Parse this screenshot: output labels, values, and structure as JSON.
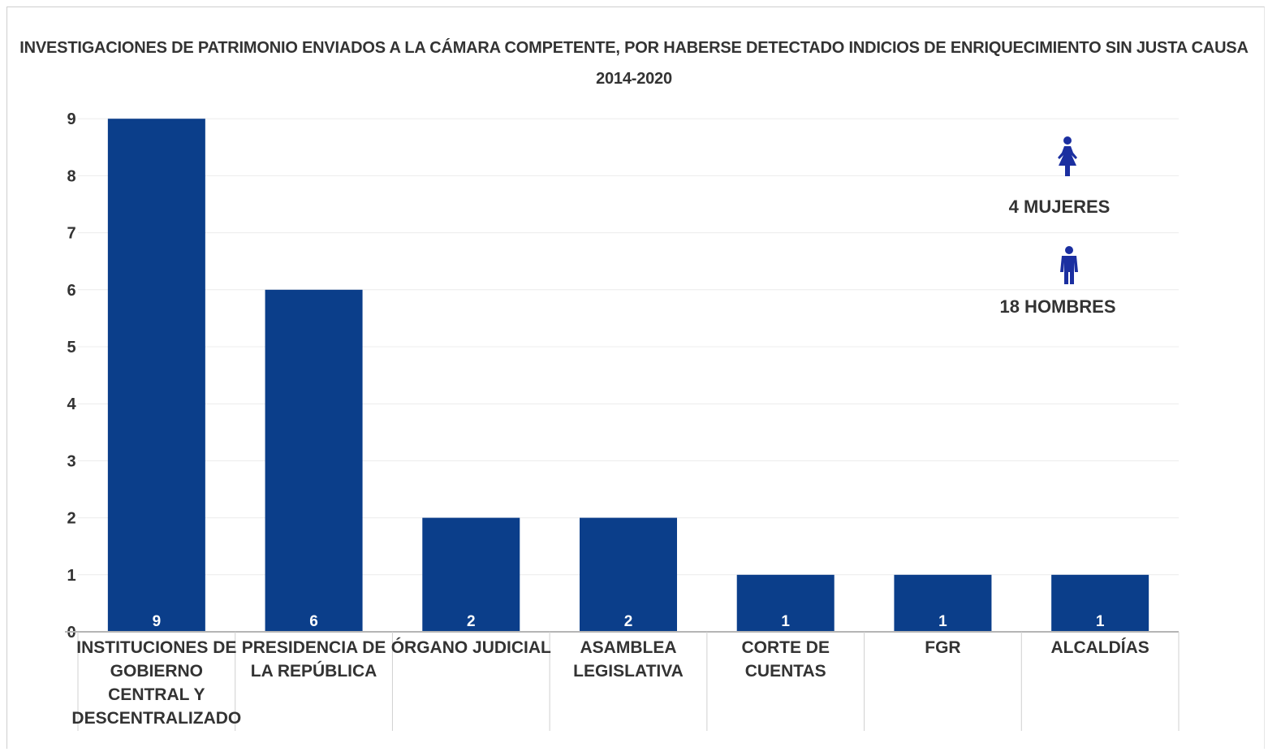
{
  "chart_data": {
    "type": "bar",
    "title": "INVESTIGACIONES DE PATRIMONIO ENVIADOS A LA CÁMARA COMPETENTE, POR HABERSE DETECTADO INDICIOS DE ENRIQUECIMIENTO SIN JUSTA CAUSA",
    "subtitle": "2014-2020",
    "xlabel": "",
    "ylabel": "",
    "ylim": [
      0,
      9
    ],
    "yticks": [
      0,
      1,
      2,
      3,
      4,
      5,
      6,
      7,
      8,
      9
    ],
    "grid": true,
    "legend_placement": "top-right",
    "categories": [
      "INSTITUCIONES DE GOBIERNO CENTRAL Y DESCENTRALIZADO",
      "PRESIDENCIA DE LA REPÚBLICA",
      "ÓRGANO JUDICIAL",
      "ASAMBLEA LEGISLATIVA",
      "CORTE DE CUENTAS",
      "FGR",
      "ALCALDÍAS"
    ],
    "category_label_lines": [
      [
        "INSTITUCIONES DE",
        "GOBIERNO",
        "CENTRAL Y",
        "DESCENTRALIZADO"
      ],
      [
        "PRESIDENCIA DE",
        "LA REPÚBLICA"
      ],
      [
        "ÓRGANO JUDICIAL"
      ],
      [
        "ASAMBLEA",
        "LEGISLATIVA"
      ],
      [
        "CORTE DE",
        "CUENTAS"
      ],
      [
        "FGR"
      ],
      [
        "ALCALDÍAS"
      ]
    ],
    "values": [
      9,
      6,
      2,
      2,
      1,
      1,
      1
    ],
    "data_labels": [
      "9",
      "6",
      "2",
      "2",
      "1",
      "1",
      "1"
    ],
    "bar_color": "#0b3e8a",
    "annotations": [
      {
        "text": "4 MUJERES",
        "icon": "woman-icon"
      },
      {
        "text": "18 HOMBRES",
        "icon": "man-icon"
      }
    ],
    "icon_color": "#1b2fa0"
  }
}
